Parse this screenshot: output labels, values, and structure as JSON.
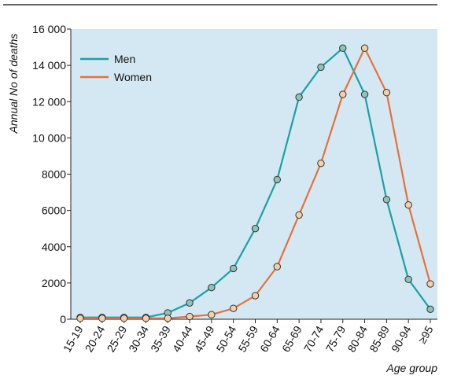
{
  "chart_data": {
    "type": "line",
    "xlabel": "Age group",
    "ylabel": "Annual No of deaths",
    "ylim": [
      0,
      16000
    ],
    "yticks": [
      0,
      2000,
      4000,
      6000,
      8000,
      10000,
      12000,
      14000,
      16000
    ],
    "ytick_labels": [
      "0",
      "2000",
      "4000",
      "6000",
      "8000",
      "10 000",
      "12 000",
      "14 000",
      "16 000"
    ],
    "categories": [
      "15-19",
      "20-24",
      "25-29",
      "30-34",
      "35-39",
      "40-44",
      "45-49",
      "50-54",
      "55-59",
      "60-64",
      "65-69",
      "70-74",
      "75-79",
      "80-84",
      "85-89",
      "90-94",
      "≥95"
    ],
    "grid": false,
    "legend_position": "top-left",
    "colors": {
      "background": "#d4e8f3",
      "axis": "#222222",
      "top_rule": "#333333"
    },
    "series": [
      {
        "name": "Men",
        "color": "#1aa0a6",
        "marker_fill": "#8fc2b8",
        "values": [
          100,
          100,
          100,
          100,
          350,
          900,
          1750,
          2800,
          5000,
          7700,
          12250,
          13900,
          14950,
          12400,
          6600,
          2200,
          550
        ]
      },
      {
        "name": "Women",
        "color": "#e8703a",
        "marker_fill": "#f6cfa9",
        "values": [
          50,
          50,
          50,
          50,
          50,
          150,
          250,
          600,
          1300,
          2900,
          5750,
          8600,
          12400,
          14950,
          12500,
          6300,
          1950
        ]
      }
    ]
  }
}
